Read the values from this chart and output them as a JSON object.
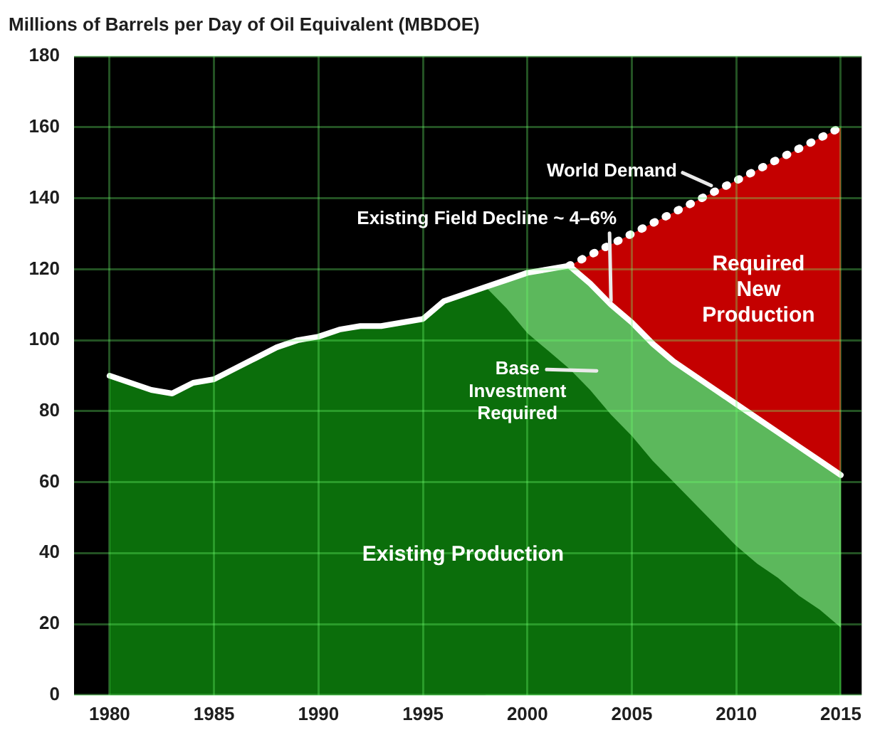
{
  "chart_data": {
    "type": "area",
    "ylabel": "Millions of Barrels per Day of Oil Equivalent (MBDOE)",
    "xlim": [
      1978.3,
      2016
    ],
    "xticks": [
      1980,
      1985,
      1990,
      1995,
      2000,
      2005,
      2010,
      2015
    ],
    "ylim": [
      0,
      180
    ],
    "yticks": [
      0,
      20,
      40,
      60,
      80,
      100,
      120,
      140,
      160,
      180
    ],
    "grid": true,
    "annotations": [
      {
        "text": "Existing Field Decline ~ 4–6%",
        "x": 2004,
        "y": 110
      },
      {
        "text": "World Demand",
        "x": 2009,
        "y": 142
      }
    ],
    "series": [
      {
        "name": "Required New Production",
        "type": "area",
        "color": "#c40000",
        "line_style": "dotted",
        "x": [
          2002,
          2005,
          2010,
          2015
        ],
        "values": [
          121,
          130,
          145,
          160
        ]
      },
      {
        "name": "Base Investment Required",
        "type": "area",
        "color": "#5cb85c",
        "x": [
          1998,
          1999,
          2000,
          2001,
          2002,
          2003,
          2004,
          2005,
          2006,
          2007,
          2008,
          2009,
          2010,
          2011,
          2012,
          2013,
          2014,
          2015
        ],
        "values": [
          115,
          117,
          119,
          120,
          121,
          116,
          110,
          105,
          99,
          94,
          90,
          86,
          82,
          78,
          74,
          70,
          66,
          62
        ]
      },
      {
        "name": "Existing Production",
        "type": "area",
        "color": "#0b6e0b",
        "x": [
          1980,
          1981,
          1982,
          1983,
          1984,
          1985,
          1986,
          1987,
          1988,
          1989,
          1990,
          1991,
          1992,
          1993,
          1994,
          1995,
          1996,
          1997,
          1998,
          1999,
          2000,
          2001,
          2002,
          2003,
          2004,
          2005,
          2006,
          2007,
          2008,
          2009,
          2010,
          2011,
          2012,
          2013,
          2014,
          2015
        ],
        "values": [
          90,
          88,
          86,
          85,
          88,
          89,
          92,
          95,
          98,
          100,
          101,
          103,
          104,
          104,
          105,
          106,
          111,
          113,
          115,
          109,
          102,
          97,
          92,
          86,
          79,
          73,
          66,
          60,
          54,
          48,
          42,
          37,
          33,
          28,
          24,
          19
        ]
      },
      {
        "type": "line",
        "color": "#ffffff",
        "x": [
          1980,
          1981,
          1982,
          1983,
          1984,
          1985,
          1986,
          1987,
          1988,
          1989,
          1990,
          1991,
          1992,
          1993,
          1994,
          1995,
          1996,
          1997,
          1998,
          1999,
          2000,
          2001,
          2002,
          2003,
          2004,
          2005,
          2006,
          2007,
          2008,
          2009,
          2010,
          2011,
          2012,
          2013,
          2014,
          2015
        ],
        "values": [
          90,
          88,
          86,
          85,
          88,
          89,
          92,
          95,
          98,
          100,
          101,
          103,
          104,
          104,
          105,
          106,
          111,
          113,
          115,
          117,
          119,
          120,
          121,
          116,
          110,
          105,
          99,
          94,
          90,
          86,
          82,
          78,
          74,
          70,
          66,
          62
        ]
      }
    ]
  }
}
